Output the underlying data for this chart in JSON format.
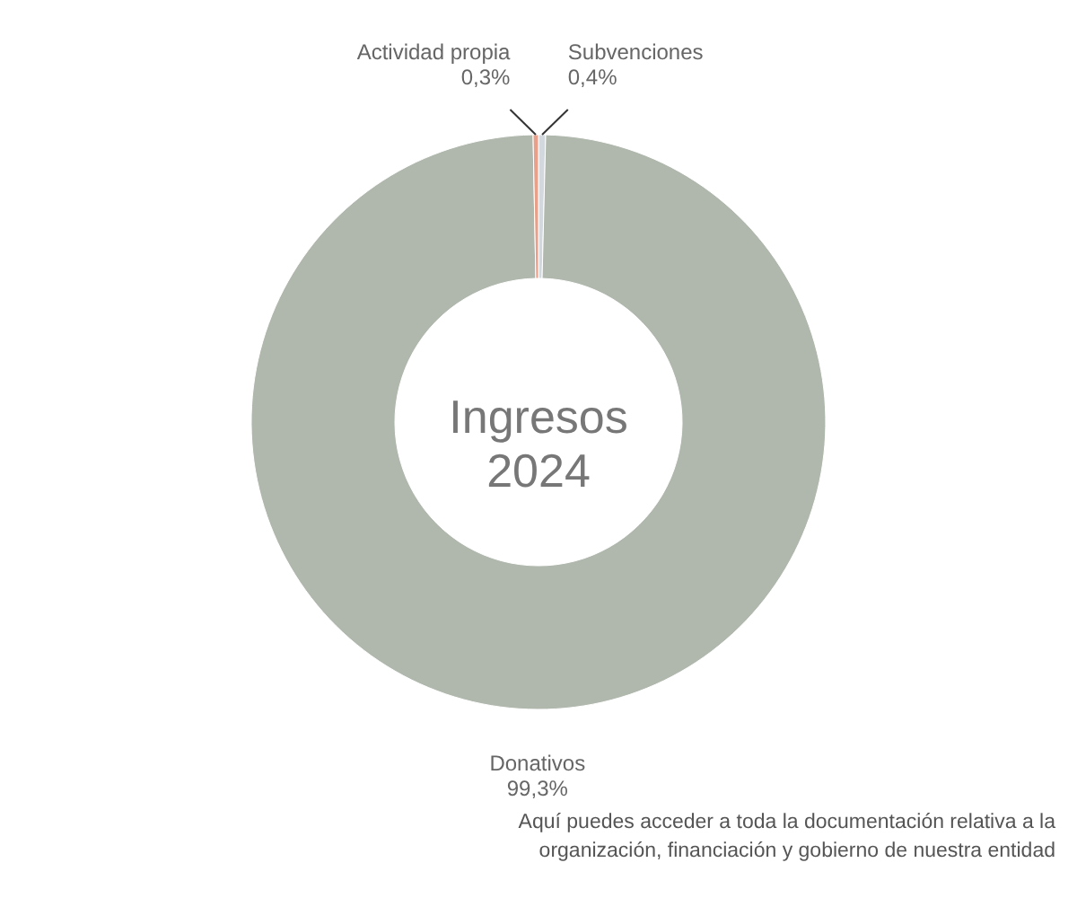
{
  "chart_data": {
    "type": "donut",
    "title": "Ingresos 2024",
    "categories": [
      "Subvenciones",
      "Donativos",
      "Actividad propia"
    ],
    "values": [
      0.4,
      99.3,
      0.3
    ],
    "value_labels": [
      "0,4%",
      "99,3%",
      "0,3%"
    ],
    "colors": [
      "#d3d8de",
      "#b0b8ad",
      "#e8a08a"
    ],
    "annotations": [
      "Aquí puedes acceder a toda la documentación relativa a la\norganización, financiación y gobierno de nuestra entidad"
    ]
  }
}
